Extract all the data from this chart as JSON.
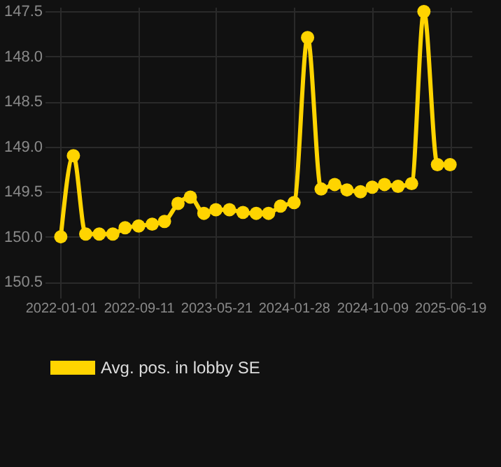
{
  "chart_data": {
    "type": "line",
    "x": [
      "2022-01-01",
      "2022-02-11",
      "2022-03-23",
      "2022-05-06",
      "2022-06-19",
      "2022-07-29",
      "2022-09-11",
      "2022-10-25",
      "2022-12-04",
      "2023-01-17",
      "2023-02-26",
      "2023-04-11",
      "2023-05-20",
      "2023-07-03",
      "2023-08-16",
      "2023-09-28",
      "2023-11-07",
      "2023-12-16",
      "2024-01-29",
      "2024-03-13",
      "2024-04-26",
      "2024-06-09",
      "2024-07-19",
      "2024-09-01",
      "2024-10-09",
      "2024-11-18",
      "2025-01-01",
      "2025-02-14",
      "2025-03-26",
      "2025-05-09",
      "2025-06-19"
    ],
    "series": [
      {
        "name": "Avg. pos. in lobby SE",
        "color": "#ffd400",
        "values": [
          150.0,
          149.1,
          149.97,
          149.97,
          149.97,
          149.9,
          149.88,
          149.86,
          149.83,
          149.63,
          149.56,
          149.74,
          149.7,
          149.7,
          149.73,
          149.74,
          149.74,
          149.66,
          149.62,
          147.79,
          149.47,
          149.42,
          149.48,
          149.5,
          149.45,
          149.42,
          149.44,
          149.41,
          147.5,
          149.2,
          149.2
        ]
      }
    ],
    "xlim": [
      "2021-11-10",
      "2025-08-28"
    ],
    "xticks": [
      "2022-01-01",
      "2022-09-11",
      "2023-05-21",
      "2024-01-28",
      "2024-10-09",
      "2025-06-19"
    ],
    "ylim": [
      150.6,
      147.45
    ],
    "yticks": [
      147.5,
      {
        "value": 148,
        "label": "148.0"
      },
      148.5,
      {
        "value": 149,
        "label": "149.0"
      },
      149.5,
      {
        "value": 150,
        "label": "150.0"
      },
      150.5
    ],
    "grid": true,
    "legend": "bottom",
    "marker": "circle",
    "line_style": "solid"
  }
}
